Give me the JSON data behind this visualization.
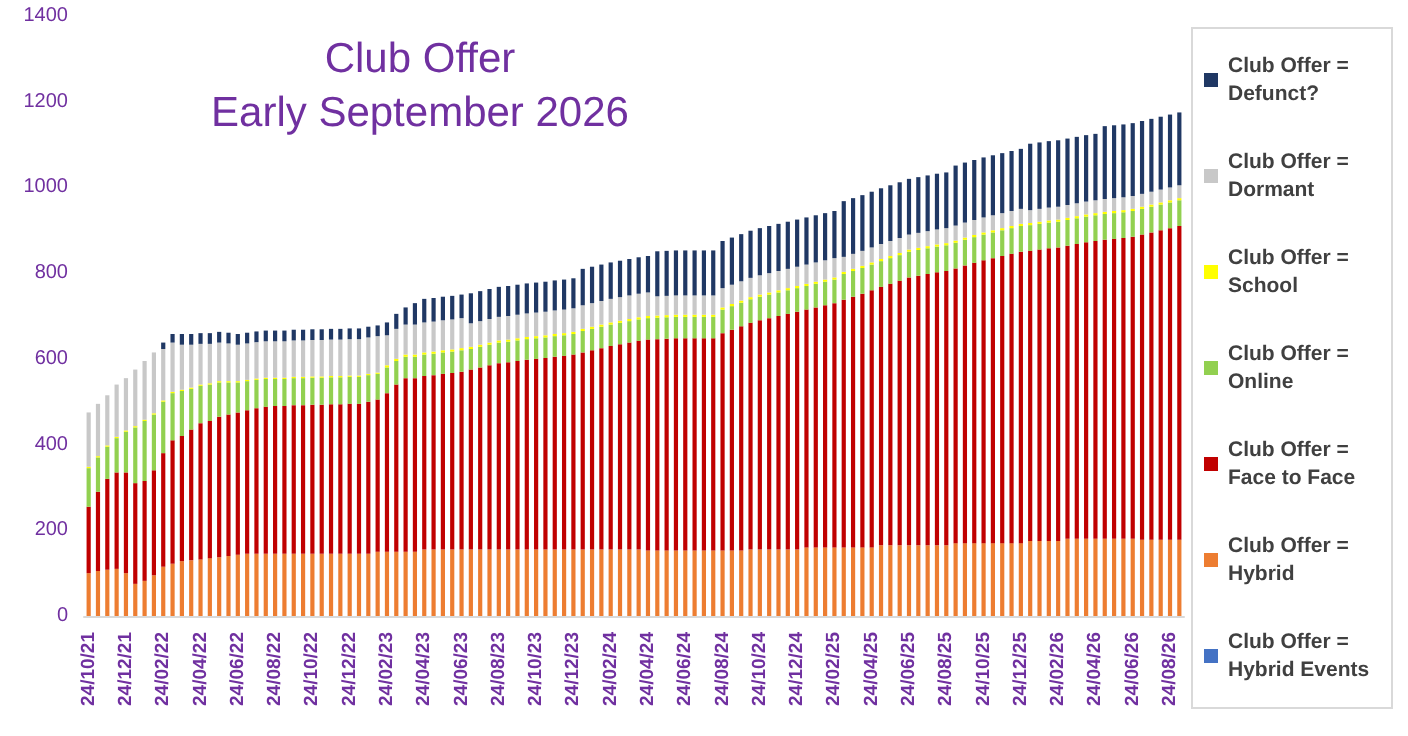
{
  "chart_data": {
    "type": "bar",
    "title": "Club Offer",
    "subtitle": "Early September 2026",
    "stacked": true,
    "legend": "right",
    "ylim": [
      0,
      1400
    ],
    "yticks": [
      0,
      200,
      400,
      600,
      800,
      1000,
      1200,
      1400
    ],
    "categories": [
      "24/10/21",
      null,
      null,
      null,
      "24/12/21",
      null,
      null,
      null,
      "24/02/22",
      null,
      null,
      null,
      "24/04/22",
      null,
      null,
      null,
      "24/06/22",
      null,
      null,
      null,
      "24/08/22",
      null,
      null,
      null,
      "24/10/22",
      null,
      null,
      null,
      "24/12/22",
      null,
      null,
      null,
      "24/02/23",
      null,
      null,
      null,
      "24/04/23",
      null,
      null,
      null,
      "24/06/23",
      null,
      null,
      null,
      "24/08/23",
      null,
      null,
      null,
      "24/10/23",
      null,
      null,
      null,
      "24/12/23",
      null,
      null,
      null,
      "24/02/24",
      null,
      null,
      null,
      "24/04/24",
      null,
      null,
      null,
      "24/06/24",
      null,
      null,
      null,
      "24/08/24",
      null,
      null,
      null,
      "24/10/24",
      null,
      null,
      null,
      "24/12/24",
      null,
      null,
      null,
      "24/02/25",
      null,
      null,
      null,
      "24/04/25",
      null,
      null,
      null,
      "24/06/25",
      null,
      null,
      null,
      "24/08/25",
      null,
      null,
      null,
      "24/10/25",
      null,
      null,
      null,
      "24/12/25",
      null,
      null,
      null,
      "24/02/26",
      null,
      null,
      null,
      "24/04/26",
      null,
      null,
      null,
      "24/06/26",
      null,
      null,
      null,
      "24/08/26",
      null
    ],
    "series": [
      {
        "name": "Club Offer = Hybrid Events",
        "color": "#4472c4",
        "values": [
          0,
          0,
          0,
          0,
          0,
          0,
          0,
          0,
          0,
          0,
          0,
          0,
          0,
          0,
          0,
          0,
          0,
          0,
          0,
          0,
          0,
          0,
          0,
          0,
          0,
          0,
          0,
          0,
          0,
          0,
          0,
          0,
          0,
          0,
          0,
          0,
          0,
          0,
          0,
          0,
          0,
          0,
          0,
          0,
          0,
          0,
          0,
          0,
          0,
          0,
          0,
          0,
          0,
          0,
          0,
          0,
          0,
          0,
          0,
          0,
          0,
          0,
          0,
          0,
          0,
          0,
          0,
          0,
          0,
          0,
          0,
          0,
          0,
          0,
          0,
          0,
          0,
          0,
          0,
          0,
          0,
          0,
          0,
          0,
          0,
          0,
          0,
          0,
          0,
          0,
          0,
          0,
          0,
          0,
          0,
          0,
          0,
          0,
          0,
          0,
          0,
          0,
          0,
          0,
          0,
          0,
          0,
          0,
          0,
          0,
          0,
          0,
          0,
          0,
          0,
          0,
          0,
          0
        ]
      },
      {
        "name": "Club Offer = Hybrid",
        "color": "#ed7d31",
        "values": [
          100,
          105,
          108,
          110,
          100,
          75,
          82,
          95,
          115,
          122,
          128,
          130,
          132,
          135,
          137,
          140,
          143,
          145,
          145,
          145,
          145,
          145,
          145,
          145,
          145,
          145,
          145,
          145,
          145,
          145,
          145,
          150,
          150,
          150,
          150,
          150,
          155,
          155,
          155,
          155,
          155,
          155,
          155,
          155,
          155,
          155,
          155,
          155,
          155,
          155,
          155,
          155,
          155,
          155,
          155,
          155,
          155,
          155,
          155,
          155,
          153,
          153,
          153,
          153,
          153,
          153,
          153,
          153,
          153,
          153,
          153,
          155,
          155,
          155,
          155,
          155,
          155,
          160,
          160,
          160,
          160,
          160,
          160,
          160,
          160,
          165,
          165,
          165,
          165,
          165,
          165,
          165,
          165,
          170,
          170,
          170,
          170,
          170,
          170,
          170,
          170,
          175,
          175,
          175,
          175,
          180,
          180,
          180,
          180,
          180,
          180,
          180,
          180,
          178,
          178,
          178,
          178,
          178
        ]
      },
      {
        "name": "Club Offer = Face to Face",
        "color": "#c00000",
        "values": [
          155,
          185,
          212,
          225,
          235,
          235,
          233,
          245,
          265,
          288,
          292,
          305,
          318,
          320,
          328,
          330,
          332,
          335,
          340,
          343,
          345,
          345,
          347,
          347,
          348,
          348,
          349,
          349,
          350,
          350,
          355,
          355,
          370,
          390,
          405,
          405,
          405,
          407,
          410,
          412,
          415,
          420,
          425,
          430,
          435,
          437,
          440,
          443,
          445,
          447,
          450,
          452,
          455,
          460,
          465,
          470,
          475,
          479,
          483,
          487,
          492,
          493,
          494,
          495,
          495,
          495,
          495,
          495,
          507,
          515,
          523,
          529,
          535,
          540,
          545,
          550,
          555,
          555,
          560,
          565,
          570,
          578,
          585,
          592,
          600,
          603,
          610,
          617,
          625,
          629,
          633,
          637,
          640,
          641,
          648,
          654,
          660,
          665,
          670,
          675,
          680,
          677,
          680,
          683,
          685,
          684,
          688,
          692,
          695,
          698,
          700,
          702,
          705,
          712,
          717,
          722,
          727,
          732
        ]
      },
      {
        "name": "Club Offer = Online",
        "color": "#92d050",
        "values": [
          90,
          80,
          75,
          80,
          95,
          130,
          140,
          130,
          120,
          110,
          105,
          95,
          87,
          85,
          80,
          75,
          70,
          68,
          66,
          65,
          63,
          63,
          63,
          63,
          63,
          63,
          63,
          63,
          63,
          63,
          62,
          60,
          60,
          55,
          50,
          50,
          50,
          50,
          50,
          50,
          50,
          48,
          48,
          48,
          48,
          48,
          48,
          48,
          48,
          48,
          48,
          48,
          48,
          50,
          50,
          50,
          50,
          50,
          50,
          50,
          50,
          50,
          50,
          50,
          50,
          50,
          50,
          50,
          55,
          55,
          55,
          55,
          55,
          55,
          55,
          55,
          55,
          55,
          55,
          55,
          55,
          60,
          60,
          60,
          60,
          60,
          60,
          60,
          60,
          60,
          60,
          60,
          60,
          60,
          60,
          60,
          60,
          60,
          60,
          60,
          60,
          60,
          60,
          60,
          60,
          60,
          60,
          60,
          60,
          60,
          60,
          60,
          60,
          60,
          60,
          60,
          60,
          60
        ]
      },
      {
        "name": "Club Offer = School",
        "color": "#ffff00",
        "values": [
          3,
          3,
          3,
          3,
          3,
          3,
          3,
          3,
          3,
          3,
          3,
          3,
          3,
          3,
          3,
          3,
          3,
          3,
          3,
          3,
          3,
          3,
          3,
          3,
          3,
          3,
          3,
          3,
          3,
          3,
          3,
          3,
          5,
          5,
          5,
          5,
          5,
          5,
          5,
          5,
          5,
          5,
          5,
          5,
          5,
          5,
          5,
          5,
          5,
          5,
          5,
          5,
          5,
          5,
          5,
          5,
          5,
          5,
          5,
          5,
          5,
          5,
          5,
          5,
          5,
          5,
          5,
          5,
          5,
          5,
          5,
          5,
          5,
          5,
          5,
          5,
          5,
          5,
          5,
          5,
          5,
          5,
          5,
          5,
          5,
          5,
          5,
          5,
          5,
          5,
          5,
          5,
          5,
          5,
          5,
          5,
          5,
          5,
          5,
          5,
          5,
          5,
          5,
          5,
          5,
          5,
          5,
          5,
          5,
          5,
          5,
          5,
          5,
          5,
          5,
          5,
          5,
          5
        ]
      },
      {
        "name": "Club Offer = Dormant",
        "color": "#c8c8c8",
        "values": [
          127,
          122,
          117,
          122,
          122,
          132,
          137,
          142,
          120,
          115,
          105,
          100,
          95,
          92,
          90,
          88,
          85,
          85,
          85,
          85,
          85,
          85,
          85,
          85,
          85,
          85,
          85,
          85,
          85,
          85,
          85,
          85,
          70,
          70,
          70,
          70,
          70,
          70,
          70,
          70,
          70,
          55,
          55,
          55,
          55,
          55,
          55,
          55,
          55,
          55,
          55,
          55,
          55,
          55,
          55,
          55,
          55,
          55,
          55,
          55,
          55,
          45,
          45,
          45,
          45,
          45,
          45,
          45,
          45,
          45,
          45,
          45,
          45,
          45,
          45,
          45,
          45,
          45,
          45,
          45,
          45,
          35,
          35,
          35,
          35,
          35,
          35,
          35,
          35,
          35,
          35,
          35,
          35,
          35,
          35,
          35,
          35,
          35,
          35,
          35,
          35,
          30,
          30,
          30,
          30,
          30,
          30,
          30,
          30,
          30,
          30,
          30,
          30,
          30,
          30,
          30,
          30,
          30
        ]
      },
      {
        "name": "Club Offer = Defunct?",
        "color": "#203864",
        "values": [
          0,
          0,
          0,
          0,
          0,
          0,
          0,
          0,
          15,
          20,
          25,
          25,
          25,
          25,
          25,
          25,
          25,
          25,
          25,
          25,
          25,
          25,
          25,
          25,
          25,
          25,
          25,
          25,
          25,
          25,
          25,
          25,
          30,
          35,
          40,
          50,
          55,
          55,
          55,
          55,
          55,
          70,
          70,
          70,
          70,
          70,
          70,
          70,
          70,
          70,
          70,
          70,
          70,
          85,
          85,
          85,
          85,
          85,
          85,
          85,
          85,
          105,
          105,
          105,
          105,
          105,
          105,
          105,
          110,
          110,
          110,
          110,
          110,
          110,
          110,
          110,
          110,
          110,
          110,
          110,
          110,
          130,
          130,
          130,
          130,
          130,
          130,
          130,
          130,
          130,
          130,
          130,
          130,
          140,
          140,
          140,
          140,
          140,
          140,
          140,
          140,
          155,
          155,
          155,
          155,
          155,
          155,
          155,
          155,
          170,
          170,
          170,
          170,
          170,
          170,
          170,
          170,
          170
        ]
      }
    ]
  }
}
